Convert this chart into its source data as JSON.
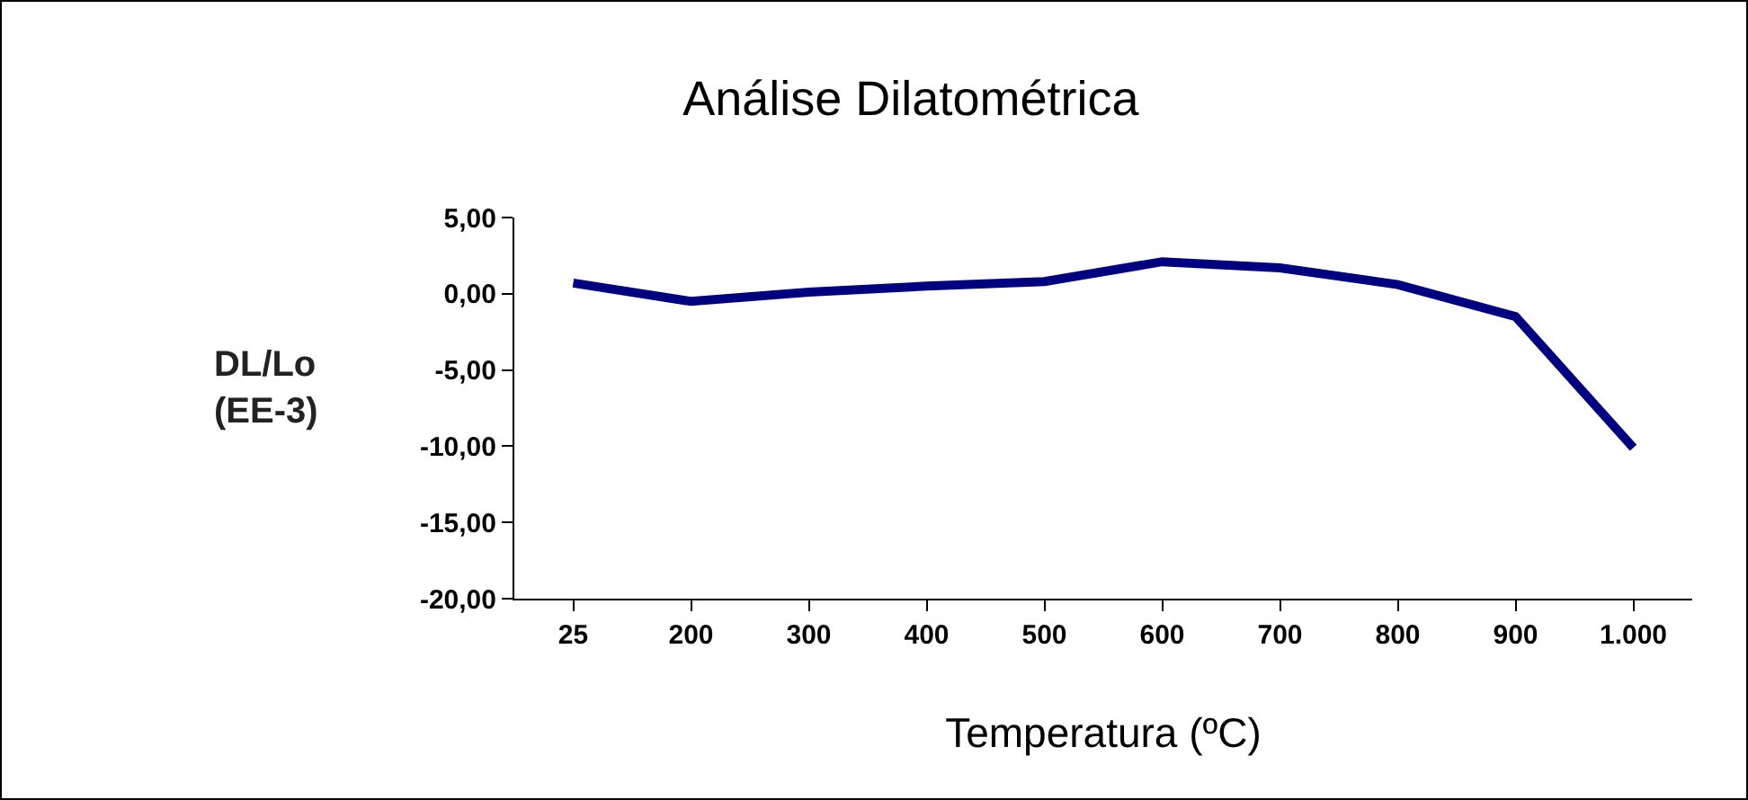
{
  "chart_data": {
    "type": "line",
    "title": "Análise Dilatométrica",
    "xlabel": "Temperatura (ºC)",
    "ylabel": "DL/Lo\n(EE-3)",
    "categories": [
      "25",
      "200",
      "300",
      "400",
      "500",
      "600",
      "700",
      "800",
      "900",
      "1.000"
    ],
    "series": [
      {
        "color": "#000080",
        "values": [
          0.7,
          -0.5,
          0.1,
          0.5,
          0.8,
          2.1,
          1.7,
          0.6,
          -1.5,
          -10.1
        ]
      }
    ],
    "ylim": [
      -20,
      5
    ],
    "yticks": [
      {
        "value": -20,
        "label": "-20,00"
      },
      {
        "value": -15,
        "label": "-15,00"
      },
      {
        "value": -10,
        "label": "-10,00"
      },
      {
        "value": -5,
        "label": "-5,00"
      },
      {
        "value": 0,
        "label": "0,00"
      },
      {
        "value": 5,
        "label": "5,00"
      }
    ],
    "grid": false,
    "marker": "none",
    "line_style": "solid"
  }
}
